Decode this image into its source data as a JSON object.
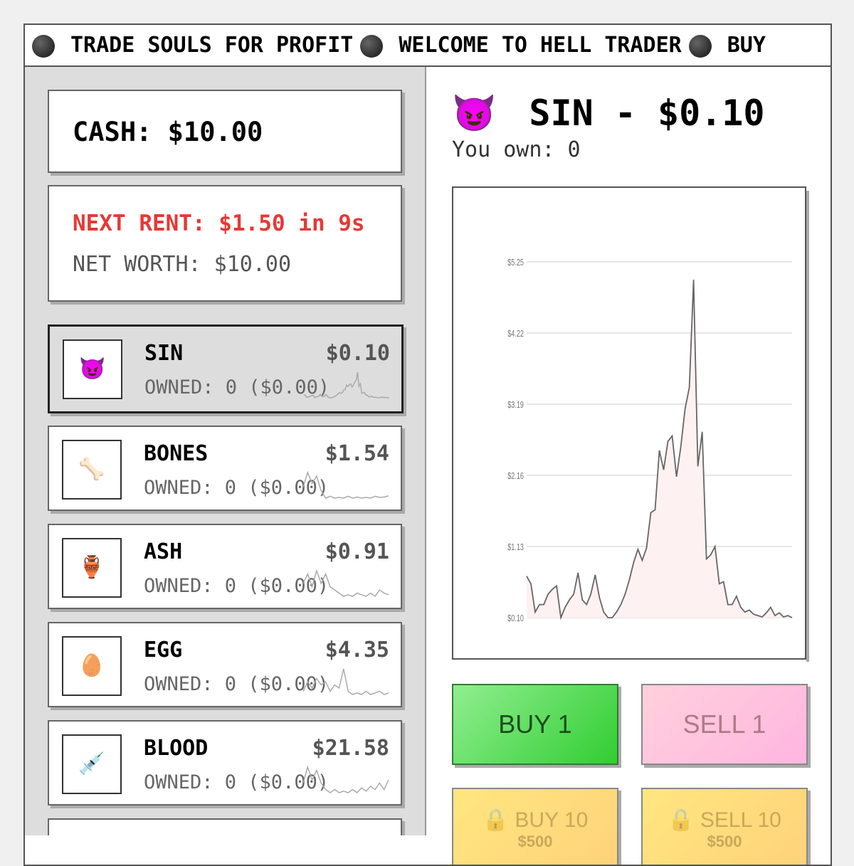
{
  "ticker": [
    "TRADE SOULS FOR PROFIT",
    "WELCOME TO HELL TRADER",
    "BUY"
  ],
  "stats": {
    "cash": "CASH: $10.00",
    "rent": "NEXT RENT: $1.50 in 9s",
    "net_worth": "NET WORTH: $10.00"
  },
  "items": [
    {
      "name": "SIN",
      "icon": "😈",
      "price": "$0.10",
      "owned": "OWNED: 0 ($0.00)"
    },
    {
      "name": "BONES",
      "icon": "🦴",
      "price": "$1.54",
      "owned": "OWNED: 0 ($0.00)",
      "history": [
        0.6,
        1.0,
        0.7,
        0.9,
        0.5,
        0.3,
        0.35,
        0.3,
        0.32,
        0.3,
        0.35,
        0.3,
        0.33,
        0.3,
        0.32,
        0.3,
        0.35,
        0.32,
        0.33,
        0.36
      ]
    },
    {
      "name": "ASH",
      "icon": "🏺",
      "price": "$0.91",
      "owned": "OWNED: 0 ($0.00)",
      "history": [
        0.6,
        0.9,
        0.5,
        1.0,
        0.6,
        0.9,
        0.5,
        0.4,
        0.3,
        0.2,
        0.25,
        0.2,
        0.3,
        0.25,
        0.2,
        0.3,
        0.2,
        0.4,
        0.3,
        0.25
      ]
    },
    {
      "name": "EGG",
      "icon": "🥚",
      "price": "$4.35",
      "owned": "OWNED: 0 ($0.00)",
      "history": [
        0.3,
        0.6,
        0.4,
        0.7,
        0.5,
        0.6,
        0.3,
        0.5,
        0.4,
        1.0,
        0.3,
        0.2,
        0.25,
        0.2,
        0.3,
        0.2,
        0.25,
        0.3,
        0.2,
        0.25
      ]
    },
    {
      "name": "BLOOD",
      "icon": "💉",
      "price": "$21.58",
      "owned": "OWNED: 0 ($0.00)",
      "history": [
        0.5,
        1.0,
        0.6,
        0.9,
        0.5,
        0.3,
        0.2,
        0.3,
        0.2,
        0.25,
        0.2,
        0.3,
        0.2,
        0.35,
        0.25,
        0.4,
        0.3,
        0.5,
        0.3,
        0.6
      ]
    }
  ],
  "detail": {
    "icon": "😈",
    "title": "SIN - $0.10",
    "owned": "You own: 0",
    "chart": {
      "type": "line",
      "color": "#666666",
      "fill": "#fdf1f1",
      "values": [
        0.7,
        0.59,
        0.18,
        0.29,
        0.29,
        0.44,
        0.51,
        0.56,
        0.1,
        0.25,
        0.36,
        0.44,
        0.75,
        0.36,
        0.29,
        0.44,
        0.72,
        0.39,
        0.18,
        0.1,
        0.1,
        0.18,
        0.29,
        0.44,
        0.65,
        0.9,
        1.09,
        0.93,
        1.11,
        1.62,
        1.66,
        2.52,
        2.24,
        2.65,
        2.73,
        2.14,
        2.57,
        3.12,
        3.43,
        4.99,
        2.29,
        2.79,
        0.95,
        1.01,
        1.13,
        0.59,
        0.62,
        0.29,
        0.29,
        0.41,
        0.25,
        0.18,
        0.21,
        0.15,
        0.13,
        0.11,
        0.17,
        0.25,
        0.13,
        0.17,
        0.11,
        0.13,
        0.1
      ],
      "ylim": [
        0.1,
        5.25
      ],
      "yticks": [
        {
          "value": 0.1,
          "label": "$0.10"
        },
        {
          "value": 1.13,
          "label": "$1.13"
        },
        {
          "value": 2.16,
          "label": "$2.16"
        },
        {
          "value": 3.19,
          "label": "$3.19"
        },
        {
          "value": 4.22,
          "label": "$4.22"
        },
        {
          "value": 5.25,
          "label": "$5.25"
        }
      ],
      "grid": true
    }
  },
  "buttons": {
    "buy1": "BUY 1",
    "sell1": "SELL 1",
    "lock": "🔒",
    "buy10": "BUY 10",
    "buy10_cost": "$500",
    "sell10": "SELL 10",
    "sell10_cost": "$500"
  }
}
